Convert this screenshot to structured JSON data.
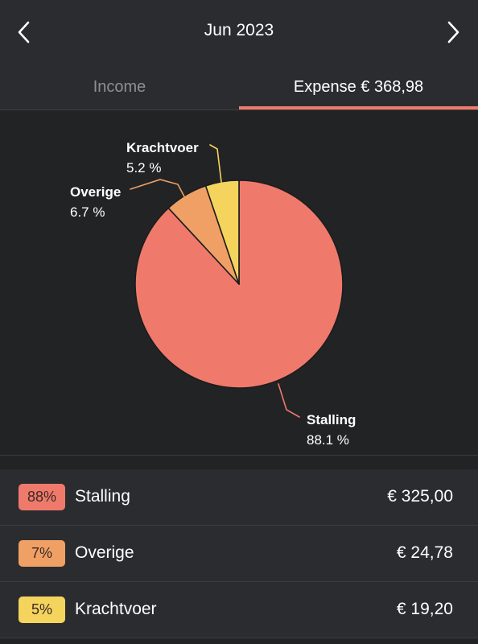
{
  "header": {
    "month": "Jun 2023",
    "prev_icon": "chevron-left-icon",
    "next_icon": "chevron-right-icon"
  },
  "tabs": {
    "income_label": "Income",
    "expense_label": "Expense € 368,98",
    "active": "expense",
    "active_color": "#ef7a6c"
  },
  "chart_data": {
    "type": "pie",
    "slices": [
      {
        "label": "Stalling",
        "percent_label": "88.1 %",
        "value": 88.1,
        "color": "#ef7a6c"
      },
      {
        "label": "Overige",
        "percent_label": "6.7 %",
        "value": 6.7,
        "color": "#f0a064"
      },
      {
        "label": "Krachtvoer",
        "percent_label": "5.2 %",
        "value": 5.2,
        "color": "#f5d45e"
      }
    ]
  },
  "list": [
    {
      "badge": "88%",
      "name": "Stalling",
      "amount": "€ 325,00",
      "color": "#ef7a6c"
    },
    {
      "badge": "7%",
      "name": "Overige",
      "amount": "€ 24,78",
      "color": "#f0a064"
    },
    {
      "badge": "5%",
      "name": "Krachtvoer",
      "amount": "€ 19,20",
      "color": "#f5d45e"
    }
  ]
}
